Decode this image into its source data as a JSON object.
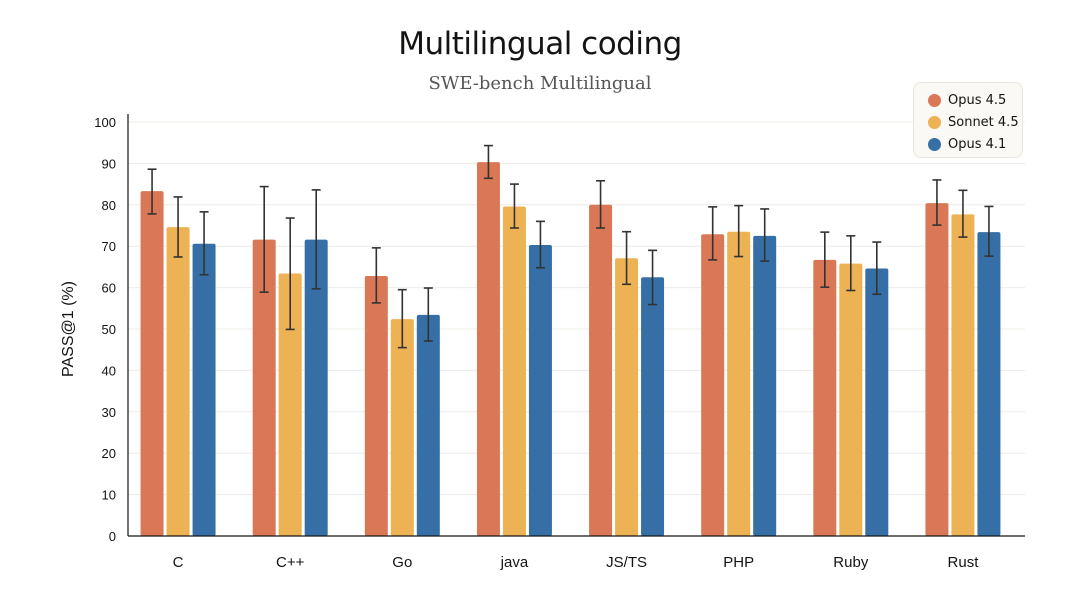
{
  "chart_data": {
    "type": "bar",
    "title": "Multilingual coding",
    "subtitle": "SWE-bench Multilingual",
    "xlabel": "",
    "ylabel": "PASS@1 (%)",
    "ylim": [
      0,
      100
    ],
    "yticks": [
      "0",
      "10",
      "20",
      "30",
      "40",
      "50",
      "60",
      "70",
      "80",
      "90",
      "100"
    ],
    "grid": true,
    "legend": "top-right",
    "categories": [
      "C",
      "C++",
      "Go",
      "java",
      "JS/TS",
      "PHP",
      "Ruby",
      "Rust"
    ],
    "series": [
      {
        "name": "Opus 4.5",
        "color": "#D97757",
        "values": [
          83.3,
          71.6,
          62.8,
          90.3,
          80.0,
          72.9,
          66.7,
          80.4
        ],
        "error_low": [
          77.8,
          58.9,
          56.3,
          86.4,
          74.4,
          66.7,
          60.1,
          75.1
        ],
        "error_high": [
          88.6,
          84.4,
          69.6,
          94.3,
          85.8,
          79.5,
          73.4,
          86.0
        ]
      },
      {
        "name": "Sonnet 4.5",
        "color": "#EDB253",
        "values": [
          74.6,
          63.4,
          52.4,
          79.6,
          67.1,
          73.5,
          65.8,
          77.7
        ],
        "error_low": [
          67.4,
          49.9,
          45.5,
          74.4,
          60.8,
          67.5,
          59.3,
          72.2
        ],
        "error_high": [
          81.9,
          76.8,
          59.5,
          85.0,
          73.5,
          79.8,
          72.5,
          83.5
        ]
      },
      {
        "name": "Opus 4.1",
        "color": "#356FA6",
        "values": [
          70.6,
          71.6,
          53.4,
          70.3,
          62.5,
          72.5,
          64.6,
          73.4
        ],
        "error_low": [
          63.1,
          59.7,
          47.1,
          64.8,
          55.9,
          66.4,
          58.4,
          67.6
        ],
        "error_high": [
          78.3,
          83.6,
          59.9,
          76.0,
          69.0,
          79.0,
          71.0,
          79.6
        ]
      }
    ]
  }
}
